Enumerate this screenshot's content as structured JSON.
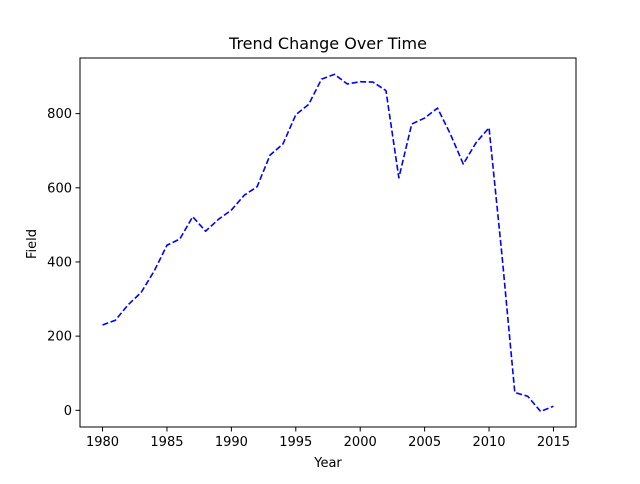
{
  "chart_data": {
    "type": "line",
    "title": "Trend Change Over Time",
    "xlabel": "Year",
    "ylabel": "Field",
    "xlim": [
      1978.25,
      2016.75
    ],
    "ylim": [
      -45,
      950
    ],
    "x_ticks": [
      1980,
      1985,
      1990,
      1995,
      2000,
      2005,
      2010,
      2015
    ],
    "y_ticks": [
      0,
      200,
      400,
      600,
      800
    ],
    "grid": false,
    "legend": "none",
    "series": [
      {
        "color": "#0000ff",
        "line_style": "dashed",
        "x": [
          1980,
          1981,
          1982,
          1983,
          1984,
          1985,
          1986,
          1987,
          1988,
          1989,
          1990,
          1991,
          1992,
          1993,
          1994,
          1995,
          1996,
          1997,
          1998,
          1999,
          2000,
          2001,
          2002,
          2003,
          2004,
          2005,
          2006,
          2007,
          2008,
          2009,
          2010,
          2011,
          2012,
          2013,
          2014,
          2015
        ],
        "y": [
          230,
          243,
          285,
          318,
          375,
          445,
          462,
          522,
          483,
          515,
          540,
          580,
          603,
          688,
          718,
          797,
          825,
          893,
          906,
          880,
          886,
          885,
          862,
          627,
          772,
          788,
          815,
          745,
          664,
          722,
          762,
          420,
          48,
          38,
          -3,
          11
        ]
      }
    ]
  }
}
